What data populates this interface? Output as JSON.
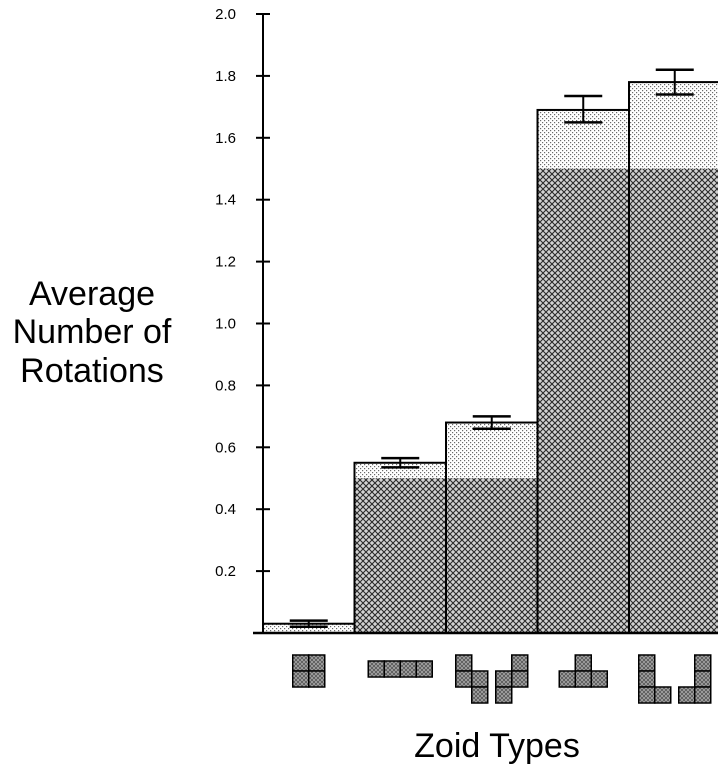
{
  "chart_data": {
    "type": "bar",
    "ylabel": "Average Number of Rotations",
    "xlabel": "Zoid Types",
    "title": "",
    "ylim": [
      0,
      2.0
    ],
    "yticks": [
      {
        "v": 0.2,
        "label": "0.2"
      },
      {
        "v": 0.4,
        "label": "0.4"
      },
      {
        "v": 0.6,
        "label": "0.6"
      },
      {
        "v": 0.8,
        "label": "0.8"
      },
      {
        "v": 1.0,
        "label": "1.0"
      },
      {
        "v": 1.2,
        "label": "1.2"
      },
      {
        "v": 1.4,
        "label": "1.4"
      },
      {
        "v": 1.6,
        "label": "1.6"
      },
      {
        "v": 1.8,
        "label": "1.8"
      },
      {
        "v": 2.0,
        "label": "2.0"
      }
    ],
    "categories": [
      "O zoid",
      "I zoid",
      "S/Z zoids",
      "T zoid",
      "L/J zoids"
    ],
    "values": [
      0.03,
      0.55,
      0.68,
      1.69,
      1.78
    ],
    "reference_values": [
      0.0,
      0.5,
      0.5,
      1.5,
      1.5
    ],
    "error_bars": [
      {
        "low": 0.02,
        "high": 0.04
      },
      {
        "low": 0.535,
        "high": 0.565
      },
      {
        "low": 0.66,
        "high": 0.7
      },
      {
        "low": 1.65,
        "high": 1.735
      },
      {
        "low": 1.74,
        "high": 1.82
      }
    ],
    "icons": [
      "o-zoid-icon",
      "i-zoid-icon",
      "s-z-zoid-icon",
      "t-zoid-icon",
      "l-j-zoid-icon"
    ],
    "grid": false,
    "colors": {
      "axis": "#000000",
      "bar_outline": "#000000",
      "icon_fill": "#9a9a9a"
    }
  }
}
